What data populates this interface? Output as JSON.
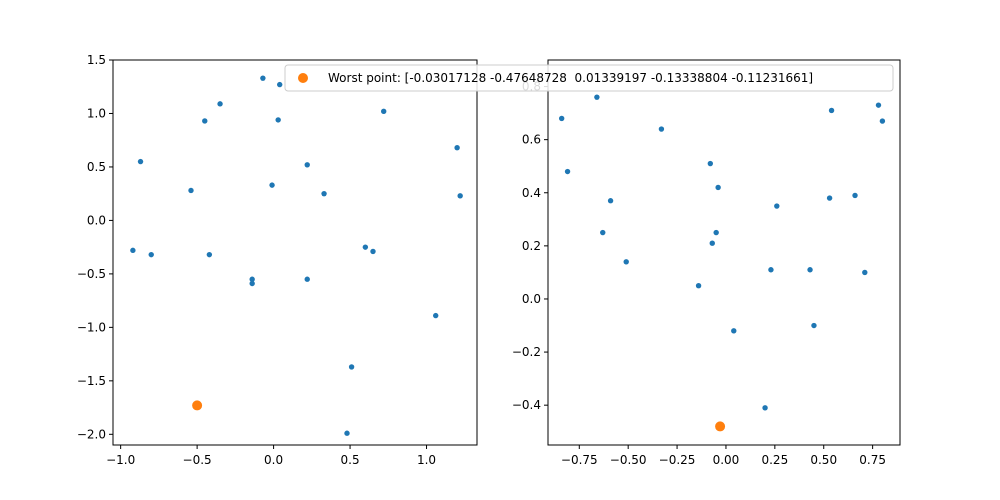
{
  "colors": {
    "series": "#1f77b4",
    "worst": "#ff7f0e",
    "frame": "#000000",
    "background": "#ffffff"
  },
  "legend": {
    "label": "Worst point: [-0.03017128 -0.47648728  0.01339197 -0.13338804 -0.11231661]",
    "placement": "top-center"
  },
  "chart_data": [
    {
      "type": "scatter",
      "xlim": [
        -1.05,
        1.33
      ],
      "ylim": [
        -2.1,
        1.5
      ],
      "xticks": [
        -1.0,
        -0.5,
        0.0,
        0.5,
        1.0
      ],
      "xtick_labels": [
        "−1.0",
        "−0.5",
        "0.0",
        "0.5",
        "1.0"
      ],
      "yticks": [
        -2.0,
        -1.5,
        -1.0,
        -0.5,
        0.0,
        0.5,
        1.0,
        1.5
      ],
      "ytick_labels": [
        "−2.0",
        "−1.5",
        "−1.0",
        "−0.5",
        "0.0",
        "0.5",
        "1.0",
        "1.5"
      ],
      "grid": false,
      "series": [
        {
          "points": [
            [
              -0.07,
              1.33
            ],
            [
              0.04,
              1.27
            ],
            [
              -0.35,
              1.09
            ],
            [
              -0.45,
              0.93
            ],
            [
              0.03,
              0.94
            ],
            [
              0.72,
              1.02
            ],
            [
              1.2,
              0.68
            ],
            [
              -0.87,
              0.55
            ],
            [
              0.22,
              0.52
            ],
            [
              -0.54,
              0.28
            ],
            [
              -0.01,
              0.33
            ],
            [
              0.33,
              0.25
            ],
            [
              1.22,
              0.23
            ],
            [
              -0.92,
              -0.28
            ],
            [
              -0.8,
              -0.32
            ],
            [
              -0.42,
              -0.32
            ],
            [
              0.6,
              -0.25
            ],
            [
              0.65,
              -0.29
            ],
            [
              -0.14,
              -0.55
            ],
            [
              -0.14,
              -0.59
            ],
            [
              0.22,
              -0.55
            ],
            [
              1.06,
              -0.89
            ],
            [
              0.51,
              -1.37
            ],
            [
              0.48,
              -1.99
            ]
          ]
        },
        {
          "points": [
            [
              -0.5,
              -1.73
            ]
          ]
        }
      ]
    },
    {
      "type": "scatter",
      "xlim": [
        -0.91,
        0.89
      ],
      "ylim": [
        -0.55,
        0.9
      ],
      "xticks": [
        -0.75,
        -0.5,
        -0.25,
        0.0,
        0.25,
        0.5,
        0.75
      ],
      "xtick_labels": [
        "−0.75",
        "−0.50",
        "−0.25",
        "0.00",
        "0.25",
        "0.50",
        "0.75"
      ],
      "yticks": [
        -0.4,
        -0.2,
        0.0,
        0.2,
        0.4,
        0.6,
        0.8
      ],
      "ytick_labels": [
        "−0.4",
        "−0.2",
        "0.0",
        "0.2",
        "0.4",
        "0.6",
        "0.8"
      ],
      "grid": false,
      "series": [
        {
          "points": [
            [
              -0.84,
              0.68
            ],
            [
              -0.66,
              0.76
            ],
            [
              -0.81,
              0.48
            ],
            [
              -0.33,
              0.64
            ],
            [
              -0.08,
              0.51
            ],
            [
              -0.59,
              0.37
            ],
            [
              -0.04,
              0.42
            ],
            [
              -0.63,
              0.25
            ],
            [
              -0.05,
              0.25
            ],
            [
              -0.07,
              0.21
            ],
            [
              -0.51,
              0.14
            ],
            [
              -0.14,
              0.05
            ],
            [
              0.04,
              -0.12
            ],
            [
              0.78,
              0.73
            ],
            [
              0.54,
              0.71
            ],
            [
              0.8,
              0.67
            ],
            [
              0.26,
              0.35
            ],
            [
              0.53,
              0.38
            ],
            [
              0.66,
              0.39
            ],
            [
              0.23,
              0.11
            ],
            [
              0.43,
              0.11
            ],
            [
              0.71,
              0.1
            ],
            [
              0.45,
              -0.1
            ],
            [
              0.2,
              -0.41
            ]
          ]
        },
        {
          "points": [
            [
              -0.03,
              -0.48
            ]
          ]
        }
      ]
    }
  ]
}
